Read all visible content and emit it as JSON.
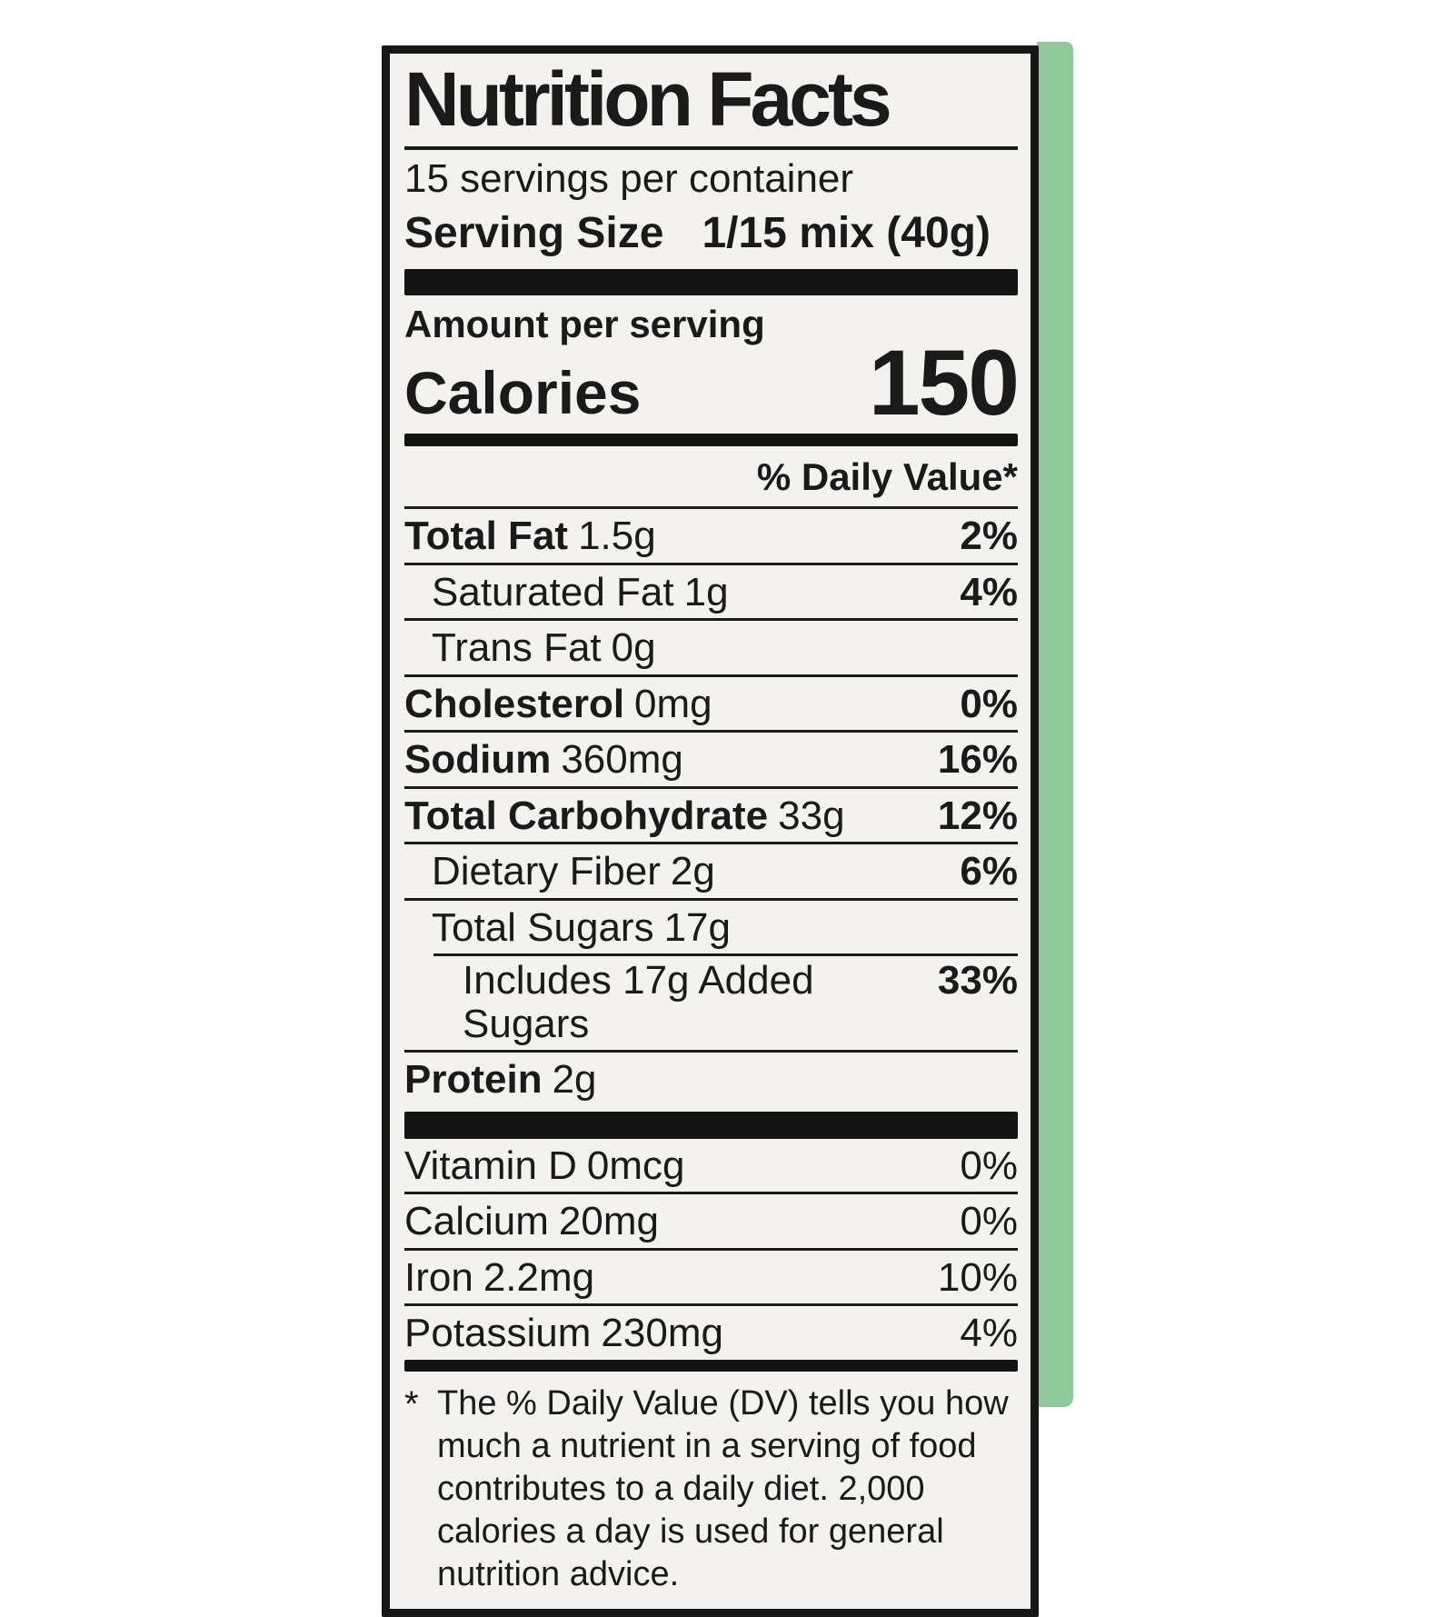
{
  "title": "Nutrition Facts",
  "servings_per_container": "15 servings per container",
  "serving_size": {
    "label": "Serving Size",
    "value": "1/15 mix (40g)"
  },
  "calories_section": {
    "amount_per_serving": "Amount per serving",
    "calories_label": "Calories",
    "calories_value": "150"
  },
  "daily_value_header": "% Daily Value*",
  "nutrients": [
    {
      "name": "Total Fat",
      "amount": "1.5g",
      "dv": "2%"
    },
    {
      "name": "Saturated Fat",
      "amount": "1g",
      "dv": "4%"
    },
    {
      "name": "Trans Fat",
      "amount": "0g",
      "dv": ""
    },
    {
      "name": "Cholesterol",
      "amount": "0mg",
      "dv": "0%"
    },
    {
      "name": "Sodium",
      "amount": "360mg",
      "dv": "16%"
    },
    {
      "name": "Total Carbohydrate",
      "amount": "33g",
      "dv": "12%"
    },
    {
      "name": "Dietary Fiber",
      "amount": "2g",
      "dv": "6%"
    },
    {
      "name": "Total Sugars",
      "amount": "17g",
      "dv": ""
    },
    {
      "name": "Includes 17g Added Sugars",
      "amount": "",
      "dv": "33%"
    },
    {
      "name": "Protein",
      "amount": "2g",
      "dv": ""
    }
  ],
  "vitamins": [
    {
      "name": "Vitamin D",
      "amount": "0mcg",
      "dv": "0%"
    },
    {
      "name": "Calcium",
      "amount": "20mg",
      "dv": "0%"
    },
    {
      "name": "Iron",
      "amount": "2.2mg",
      "dv": "10%"
    },
    {
      "name": "Potassium",
      "amount": "230mg",
      "dv": "4%"
    }
  ],
  "footnote": {
    "marker": "*",
    "text": "The % Daily Value (DV) tells you how much a nutrient in a serving of food contributes to a daily diet. 2,000 calories a day is used for general nutrition advice."
  },
  "colors": {
    "package_edge_green": "#8ec89b",
    "label_background": "#f4f2ef",
    "ink": "#1a1a1a"
  }
}
